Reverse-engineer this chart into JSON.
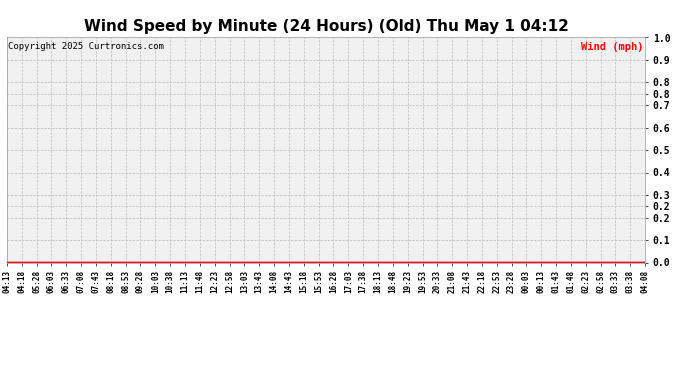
{
  "title": "Wind Speed by Minute (24 Hours) (Old) Thu May 1 04:12",
  "copyright": "Copyright 2025 Curtronics.com",
  "legend_label": "Wind (mph)",
  "legend_color": "#ff0000",
  "background_color": "#ffffff",
  "plot_bg_color": "#f0f0f0",
  "grid_color": "#bbbbbb",
  "line_color": "#ff0000",
  "title_fontsize": 11,
  "copyright_fontsize": 6.5,
  "legend_fontsize": 7.5,
  "ytick_fontsize": 7,
  "xtick_fontsize": 5.5,
  "ylim": [
    0.0,
    1.0
  ],
  "ytick_positions": [
    0.0,
    0.1,
    0.2,
    0.25,
    0.3,
    0.4,
    0.5,
    0.6,
    0.7,
    0.75,
    0.8,
    0.9,
    1.0
  ],
  "ytick_labels": [
    "0.0",
    "0.1",
    "0.2",
    "0.2",
    "0.3",
    "0.4",
    "0.5",
    "0.6",
    "0.7",
    "0.8",
    "0.8",
    "0.9",
    "1.0"
  ],
  "n_minutes": 1440,
  "wind_value": 0.0,
  "x_tick_labels": [
    "04:13",
    "04:18",
    "05:28",
    "06:03",
    "06:33",
    "07:08",
    "07:43",
    "08:18",
    "08:53",
    "09:28",
    "10:03",
    "10:38",
    "11:13",
    "11:48",
    "12:23",
    "12:58",
    "13:03",
    "13:43",
    "14:08",
    "14:43",
    "15:18",
    "15:53",
    "16:28",
    "17:03",
    "17:38",
    "18:13",
    "18:48",
    "19:23",
    "19:53",
    "20:33",
    "21:08",
    "21:43",
    "22:18",
    "22:53",
    "23:28",
    "00:03",
    "00:13",
    "01:43",
    "01:48",
    "02:23",
    "02:58",
    "03:33",
    "03:38",
    "04:08"
  ]
}
